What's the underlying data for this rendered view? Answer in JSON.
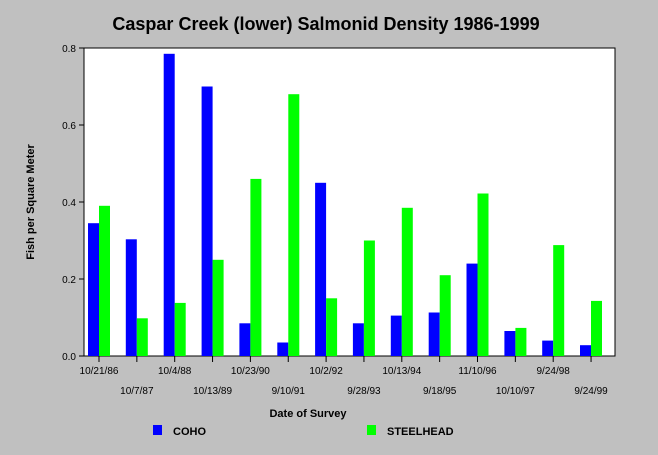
{
  "chart_data": {
    "type": "bar",
    "title": "Caspar Creek (lower) Salmonid Density 1986-1999",
    "xlabel": "Date of Survey",
    "ylabel": "Fish per Square Meter",
    "ylim": [
      0,
      0.8
    ],
    "yticks": [
      "0.0",
      "0.2",
      "0.4",
      "0.6",
      "0.8"
    ],
    "categories": [
      "10/21/86",
      "10/7/87",
      "10/4/88",
      "10/13/89",
      "10/23/90",
      "9/10/91",
      "10/2/92",
      "9/28/93",
      "10/13/94",
      "9/18/95",
      "11/10/96",
      "10/10/97",
      "9/24/98",
      "9/24/99"
    ],
    "series": [
      {
        "name": "COHO",
        "color": "#0000ff",
        "values": [
          0.345,
          0.303,
          0.785,
          0.7,
          0.085,
          0.035,
          0.45,
          0.085,
          0.105,
          0.113,
          0.24,
          0.065,
          0.04,
          0.028
        ]
      },
      {
        "name": "STEELHEAD",
        "color": "#00ff00",
        "values": [
          0.39,
          0.098,
          0.138,
          0.25,
          0.46,
          0.68,
          0.15,
          0.3,
          0.385,
          0.21,
          0.422,
          0.073,
          0.288,
          0.143
        ]
      }
    ],
    "grid": false,
    "legend": "bottom",
    "background": "#c0c0c0",
    "plot_background": "#ffffff"
  }
}
